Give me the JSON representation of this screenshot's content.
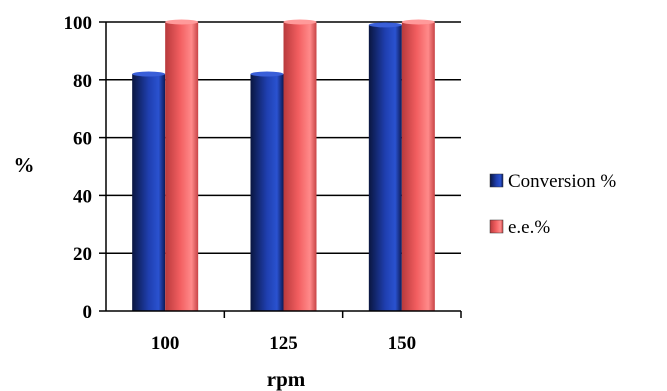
{
  "chart_data": {
    "type": "bar",
    "title": "",
    "xlabel": "rpm",
    "ylabel": "%",
    "categories": [
      "100",
      "125",
      "150"
    ],
    "series": [
      {
        "name": "Conversion %",
        "values": [
          82,
          82,
          99
        ],
        "color": "#1f3fa8"
      },
      {
        "name": "e.e.%",
        "values": [
          100,
          100,
          100
        ],
        "color": "#e8585a"
      }
    ],
    "ylim": [
      0,
      100
    ],
    "yticks": [
      0,
      20,
      40,
      60,
      80,
      100
    ],
    "grid": true,
    "legend_position": "right"
  }
}
